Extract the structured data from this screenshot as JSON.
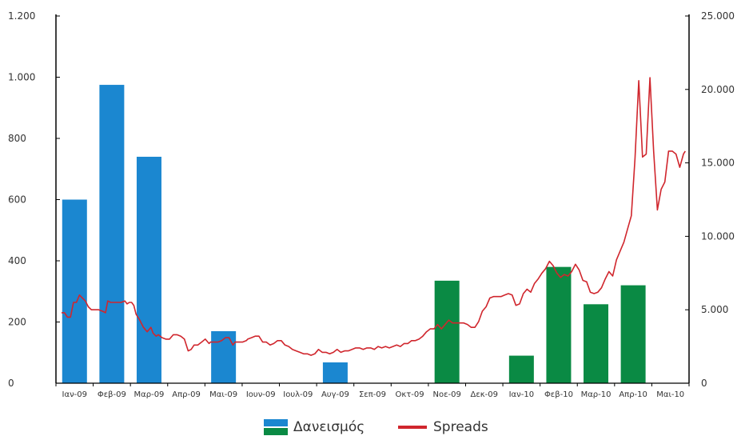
{
  "chart_data": {
    "type": "bar+line",
    "categories": [
      "Ιαν-09",
      "Φεβ-09",
      "Μαρ-09",
      "Απρ-09",
      "Μαι-09",
      "Ιουν-09",
      "Ιουλ-09",
      "Αυγ-09",
      "Σεπ-09",
      "Οκτ-09",
      "Νοε-09",
      "Δεκ-09",
      "Ιαν-10",
      "Φεβ-10",
      "Μαρ-10",
      "Απρ-10",
      "Μαι-10"
    ],
    "left_axis": {
      "ylim": [
        0,
        1200
      ],
      "ticks": [
        0,
        200,
        400,
        600,
        800,
        1000,
        1200
      ],
      "tick_labels": [
        "0",
        "200",
        "400",
        "600",
        "800",
        "1.000",
        "1.200"
      ]
    },
    "right_axis": {
      "ylim": [
        0,
        25000
      ],
      "ticks": [
        0,
        5000,
        10000,
        15000,
        20000,
        25000
      ],
      "tick_labels": [
        "0",
        "5.000",
        "10.000",
        "15.000",
        "20.000",
        "25.000"
      ]
    },
    "bars": [
      {
        "category": "Ιαν-09",
        "value": 600,
        "color": "#1b87d0"
      },
      {
        "category": "Φεβ-09",
        "value": 975,
        "color": "#1b87d0"
      },
      {
        "category": "Μαρ-09",
        "value": 740,
        "color": "#1b87d0"
      },
      {
        "category": "Μαι-09",
        "value": 170,
        "color": "#1b87d0"
      },
      {
        "category": "Αυγ-09",
        "value": 68,
        "color": "#1b87d0"
      },
      {
        "category": "Νοε-09",
        "value": 335,
        "color": "#0a8a44"
      },
      {
        "category": "Ιαν-10",
        "value": 90,
        "color": "#0a8a44"
      },
      {
        "category": "Φεβ-10",
        "value": 380,
        "color": "#0a8a44"
      },
      {
        "category": "Μαρ-10",
        "value": 258,
        "color": "#0a8a44"
      },
      {
        "category": "Απρ-10",
        "value": 320,
        "color": "#0a8a44"
      }
    ],
    "line": {
      "name": "Spreads",
      "color": "#d0262d",
      "points": [
        [
          0.0,
          4800
        ],
        [
          0.08,
          4800
        ],
        [
          0.16,
          4500
        ],
        [
          0.24,
          4500
        ],
        [
          0.32,
          5500
        ],
        [
          0.4,
          5500
        ],
        [
          0.48,
          6000
        ],
        [
          0.56,
          5800
        ],
        [
          0.64,
          5600
        ],
        [
          0.72,
          5200
        ],
        [
          0.8,
          5000
        ],
        [
          0.88,
          5000
        ],
        [
          1.0,
          5000
        ],
        [
          1.1,
          4900
        ],
        [
          1.18,
          4800
        ],
        [
          1.24,
          5600
        ],
        [
          1.32,
          5500
        ],
        [
          1.4,
          5500
        ],
        [
          1.5,
          5500
        ],
        [
          1.6,
          5500
        ],
        [
          1.7,
          5600
        ],
        [
          1.76,
          5400
        ],
        [
          1.82,
          5500
        ],
        [
          1.88,
          5500
        ],
        [
          1.94,
          5300
        ],
        [
          2.0,
          4700
        ],
        [
          2.1,
          4300
        ],
        [
          2.2,
          3800
        ],
        [
          2.3,
          3500
        ],
        [
          2.4,
          3800
        ],
        [
          2.46,
          3400
        ],
        [
          2.54,
          3200
        ],
        [
          2.6,
          3300
        ],
        [
          2.7,
          3100
        ],
        [
          2.8,
          3000
        ],
        [
          2.9,
          3000
        ],
        [
          3.0,
          3300
        ],
        [
          3.1,
          3300
        ],
        [
          3.2,
          3200
        ],
        [
          3.3,
          3000
        ],
        [
          3.4,
          2200
        ],
        [
          3.48,
          2300
        ],
        [
          3.56,
          2600
        ],
        [
          3.66,
          2600
        ],
        [
          3.76,
          2800
        ],
        [
          3.86,
          3000
        ],
        [
          3.96,
          2700
        ],
        [
          4.0,
          2800
        ],
        [
          4.1,
          2800
        ],
        [
          4.2,
          2800
        ],
        [
          4.3,
          2900
        ],
        [
          4.4,
          3100
        ],
        [
          4.5,
          3100
        ],
        [
          4.6,
          2600
        ],
        [
          4.66,
          2800
        ],
        [
          4.76,
          2800
        ],
        [
          4.86,
          2800
        ],
        [
          4.96,
          2900
        ],
        [
          5.0,
          3000
        ],
        [
          5.1,
          3100
        ],
        [
          5.2,
          3200
        ],
        [
          5.3,
          3200
        ],
        [
          5.4,
          2800
        ],
        [
          5.5,
          2800
        ],
        [
          5.6,
          2600
        ],
        [
          5.7,
          2700
        ],
        [
          5.8,
          2900
        ],
        [
          5.9,
          2900
        ],
        [
          6.0,
          2600
        ],
        [
          6.1,
          2500
        ],
        [
          6.2,
          2300
        ],
        [
          6.3,
          2200
        ],
        [
          6.4,
          2100
        ],
        [
          6.5,
          2000
        ],
        [
          6.6,
          2000
        ],
        [
          6.7,
          1900
        ],
        [
          6.8,
          2000
        ],
        [
          6.9,
          2300
        ],
        [
          7.0,
          2100
        ],
        [
          7.1,
          2100
        ],
        [
          7.2,
          2000
        ],
        [
          7.3,
          2100
        ],
        [
          7.4,
          2300
        ],
        [
          7.5,
          2100
        ],
        [
          7.6,
          2200
        ],
        [
          7.7,
          2200
        ],
        [
          7.8,
          2300
        ],
        [
          7.9,
          2400
        ],
        [
          8.0,
          2400
        ],
        [
          8.1,
          2300
        ],
        [
          8.2,
          2400
        ],
        [
          8.3,
          2400
        ],
        [
          8.4,
          2300
        ],
        [
          8.5,
          2500
        ],
        [
          8.6,
          2400
        ],
        [
          8.7,
          2500
        ],
        [
          8.8,
          2400
        ],
        [
          8.9,
          2500
        ],
        [
          9.0,
          2600
        ],
        [
          9.1,
          2500
        ],
        [
          9.2,
          2700
        ],
        [
          9.3,
          2700
        ],
        [
          9.4,
          2900
        ],
        [
          9.5,
          2900
        ],
        [
          9.6,
          3000
        ],
        [
          9.7,
          3200
        ],
        [
          9.8,
          3500
        ],
        [
          9.9,
          3700
        ],
        [
          10.0,
          3700
        ],
        [
          10.1,
          4000
        ],
        [
          10.2,
          3700
        ],
        [
          10.3,
          4000
        ],
        [
          10.4,
          4300
        ],
        [
          10.5,
          4100
        ],
        [
          10.6,
          4100
        ],
        [
          10.7,
          4100
        ],
        [
          10.8,
          4100
        ],
        [
          10.9,
          4000
        ],
        [
          11.0,
          3800
        ],
        [
          11.1,
          3800
        ],
        [
          11.2,
          4200
        ],
        [
          11.3,
          4900
        ],
        [
          11.4,
          5200
        ],
        [
          11.5,
          5800
        ],
        [
          11.6,
          5900
        ],
        [
          11.7,
          5900
        ],
        [
          11.8,
          5900
        ],
        [
          11.9,
          6000
        ],
        [
          12.0,
          6100
        ],
        [
          12.1,
          6000
        ],
        [
          12.2,
          5300
        ],
        [
          12.3,
          5400
        ],
        [
          12.4,
          6100
        ],
        [
          12.5,
          6400
        ],
        [
          12.6,
          6200
        ],
        [
          12.7,
          6800
        ],
        [
          12.8,
          7100
        ],
        [
          12.9,
          7500
        ],
        [
          13.0,
          7800
        ],
        [
          13.1,
          8300
        ],
        [
          13.2,
          8000
        ],
        [
          13.3,
          7500
        ],
        [
          13.4,
          7200
        ],
        [
          13.5,
          7400
        ],
        [
          13.6,
          7300
        ],
        [
          13.7,
          7600
        ],
        [
          13.8,
          8100
        ],
        [
          13.9,
          7700
        ],
        [
          14.0,
          7000
        ],
        [
          14.1,
          6900
        ],
        [
          14.2,
          6200
        ],
        [
          14.3,
          6100
        ],
        [
          14.4,
          6200
        ],
        [
          14.5,
          6500
        ],
        [
          14.6,
          7100
        ],
        [
          14.7,
          7600
        ],
        [
          14.8,
          7300
        ],
        [
          14.9,
          8400
        ],
        [
          15.0,
          9000
        ],
        [
          15.1,
          9600
        ],
        [
          15.2,
          10500
        ],
        [
          15.3,
          11400
        ],
        [
          15.4,
          15300
        ],
        [
          15.5,
          20600
        ],
        [
          15.6,
          15400
        ],
        [
          15.7,
          15600
        ],
        [
          15.8,
          20800
        ],
        [
          15.9,
          15800
        ],
        [
          16.0,
          11800
        ],
        [
          16.1,
          13200
        ],
        [
          16.2,
          13700
        ],
        [
          16.3,
          15800
        ],
        [
          16.4,
          15800
        ],
        [
          16.5,
          15600
        ],
        [
          16.6,
          14700
        ],
        [
          16.7,
          15600
        ],
        [
          16.75,
          15800
        ]
      ]
    },
    "legend": [
      {
        "label": "Δανεισμός",
        "type": "bar",
        "colors": [
          "#1b87d0",
          "#0a8a44"
        ]
      },
      {
        "label": "Spreads",
        "type": "line",
        "colors": [
          "#d0262d"
        ]
      }
    ],
    "legend_position": "bottom-center",
    "grid": false
  }
}
